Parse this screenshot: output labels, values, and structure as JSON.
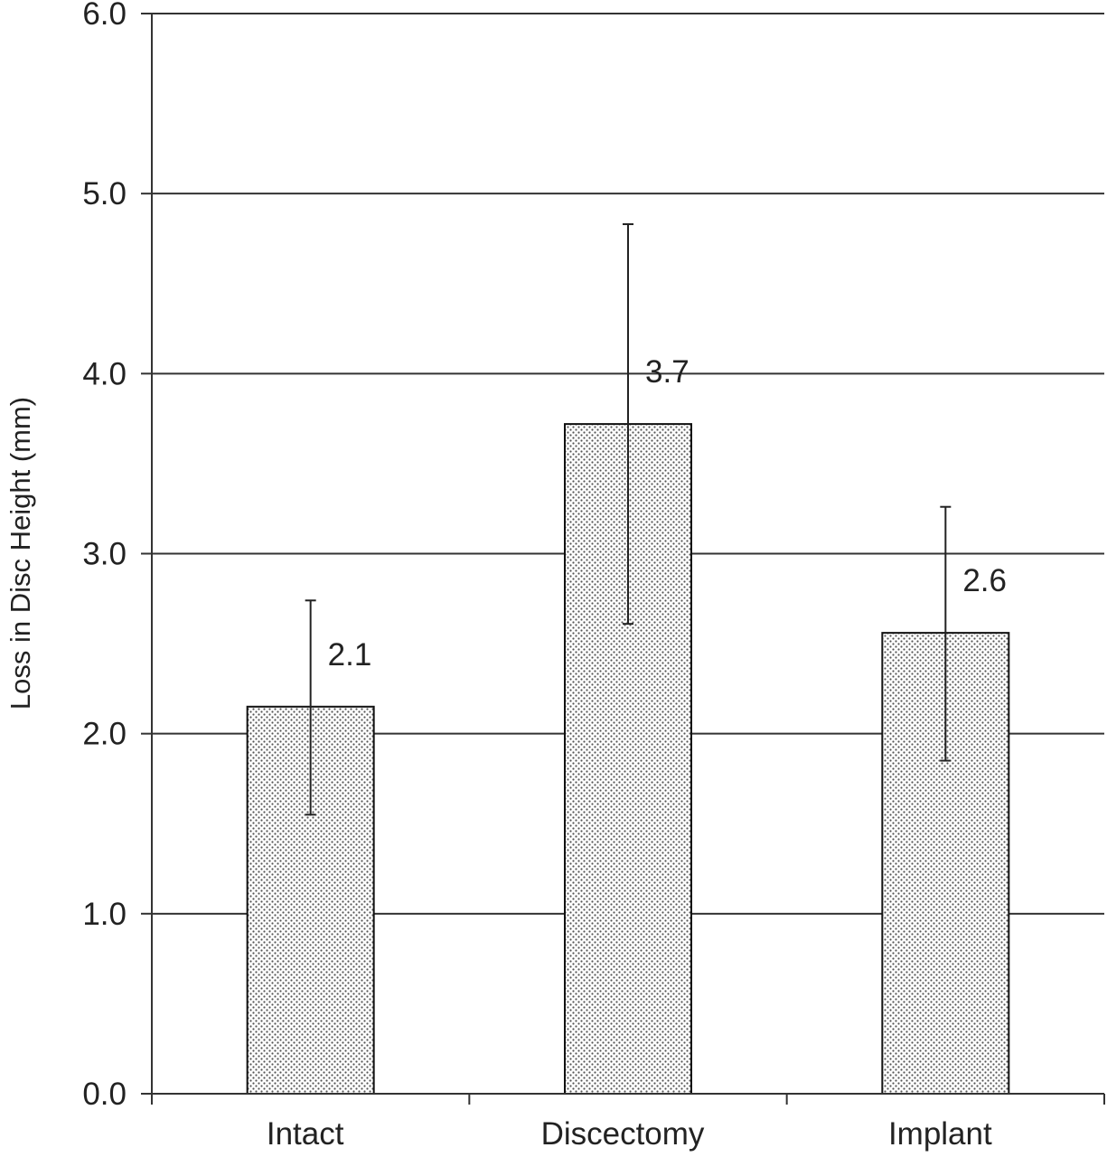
{
  "chart_data": {
    "type": "bar",
    "title": "",
    "xlabel": "",
    "ylabel": "Loss in Disc Height (mm)",
    "categories": [
      "Intact",
      "Discectomy",
      "Implant"
    ],
    "values": [
      2.15,
      3.72,
      2.56
    ],
    "data_labels": [
      "2.1",
      "3.7",
      "2.6"
    ],
    "error_bars": [
      {
        "low": 1.55,
        "high": 2.74
      },
      {
        "low": 2.61,
        "high": 4.83
      },
      {
        "low": 1.85,
        "high": 3.26
      }
    ],
    "ylim": [
      0,
      6
    ],
    "yticks": [
      0,
      1,
      2,
      3,
      4,
      5,
      6
    ],
    "ytick_labels": [
      "0.0",
      "1.0",
      "2.0",
      "3.0",
      "4.0",
      "5.0",
      "6.0"
    ],
    "grid": true,
    "legend": "none",
    "bar_fill": "dotted-pattern",
    "colors": {
      "bar_background": "#ffffff",
      "bar_dots": "#555555",
      "bar_edge": "#111111",
      "grid": "#333333",
      "axis": "#333333",
      "text": "#222222"
    }
  }
}
